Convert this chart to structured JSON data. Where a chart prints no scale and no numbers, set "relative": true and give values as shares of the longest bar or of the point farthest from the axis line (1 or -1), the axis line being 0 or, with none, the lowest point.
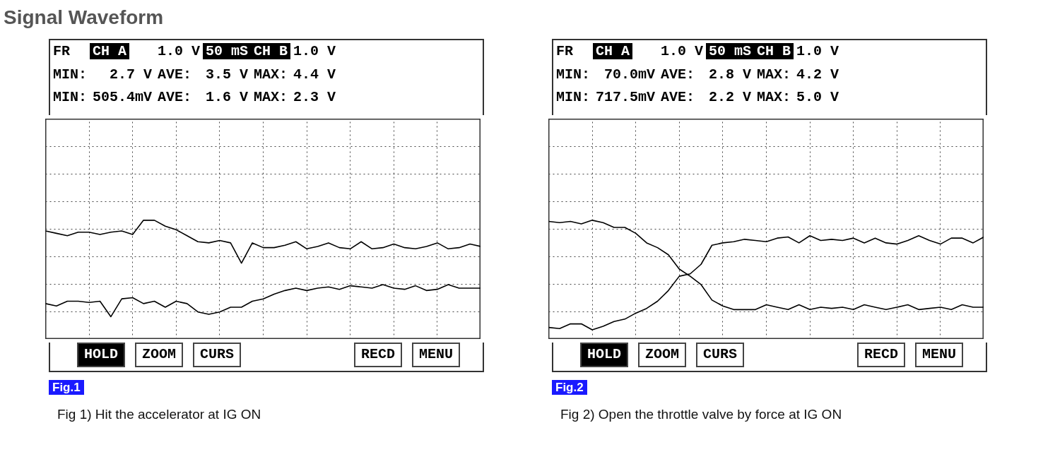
{
  "chart_data": [
    {
      "type": "line",
      "title": "Signal Waveform",
      "relative": true,
      "grid": true,
      "tick_labels": false,
      "line_style": "solid",
      "categories": [
        null,
        null,
        null,
        null,
        null,
        null,
        null,
        null,
        null,
        null,
        null,
        null,
        null,
        null,
        null,
        null,
        null,
        null,
        null,
        null,
        null,
        null,
        null,
        null,
        null,
        null,
        null,
        null,
        null,
        null,
        null,
        null,
        null,
        null,
        null,
        null,
        null,
        null,
        null,
        null,
        null
      ],
      "series": [
        {
          "color": "#000000",
          "values": [
            0.91,
            0.89,
            0.87,
            0.9,
            0.9,
            0.88,
            0.9,
            0.91,
            0.88,
            1,
            1,
            0.95,
            0.92,
            0.87,
            0.82,
            0.81,
            0.83,
            0.81,
            0.64,
            0.81,
            0.77,
            0.77,
            0.79,
            0.82,
            0.76,
            0.78,
            0.81,
            0.77,
            0.76,
            0.82,
            0.76,
            0.77,
            0.8,
            0.77,
            0.76,
            0.78,
            0.81,
            0.76,
            0.77,
            0.8,
            0.78
          ]
        },
        {
          "color": "#000000",
          "values": [
            0.3,
            0.28,
            0.32,
            0.32,
            0.31,
            0.32,
            0.19,
            0.34,
            0.35,
            0.3,
            0.32,
            0.27,
            0.32,
            0.3,
            0.23,
            0.21,
            0.23,
            0.27,
            0.27,
            0.32,
            0.34,
            0.38,
            0.41,
            0.43,
            0.41,
            0.43,
            0.44,
            0.42,
            0.45,
            0.44,
            0.43,
            0.46,
            0.43,
            0.42,
            0.45,
            0.41,
            0.42,
            0.46,
            0.43,
            0.43,
            0.43
          ]
        }
      ],
      "annotations": [
        "FR",
        "CH A",
        "1.0 V",
        "50 mS",
        "CH B",
        "1.0 V",
        "MIN:",
        "2.7 V",
        "AVE:",
        "3.5 V",
        "MAX:",
        "4.4 V",
        "MIN:",
        "505.4mV",
        "AVE:",
        "1.6 V",
        "MAX:",
        "2.3 V",
        "HOLD",
        "ZOOM",
        "CURS",
        "RECD",
        "MENU",
        "Fig.1",
        "Fig 1) Hit the accelerator at IG ON"
      ]
    },
    {
      "type": "line",
      "relative": true,
      "grid": true,
      "tick_labels": false,
      "line_style": "solid",
      "categories": [
        null,
        null,
        null,
        null,
        null,
        null,
        null,
        null,
        null,
        null,
        null,
        null,
        null,
        null,
        null,
        null,
        null,
        null,
        null,
        null,
        null,
        null,
        null,
        null,
        null,
        null,
        null,
        null,
        null,
        null,
        null,
        null,
        null,
        null,
        null,
        null,
        null,
        null,
        null,
        null,
        null
      ],
      "series": [
        {
          "color": "#000000",
          "values": [
            0.99,
            0.98,
            0.99,
            0.97,
            1,
            0.98,
            0.94,
            0.94,
            0.89,
            0.81,
            0.77,
            0.71,
            0.59,
            0.53,
            0.46,
            0.33,
            0.28,
            0.25,
            0.25,
            0.25,
            0.29,
            0.27,
            0.25,
            0.29,
            0.25,
            0.27,
            0.26,
            0.27,
            0.25,
            0.29,
            0.27,
            0.25,
            0.27,
            0.29,
            0.25,
            0.26,
            0.27,
            0.25,
            0.29,
            0.27,
            0.27
          ]
        },
        {
          "color": "#000000",
          "values": [
            0.1,
            0.09,
            0.13,
            0.13,
            0.08,
            0.11,
            0.15,
            0.17,
            0.22,
            0.26,
            0.32,
            0.41,
            0.53,
            0.55,
            0.63,
            0.79,
            0.81,
            0.82,
            0.84,
            0.83,
            0.82,
            0.85,
            0.86,
            0.81,
            0.87,
            0.83,
            0.84,
            0.83,
            0.85,
            0.81,
            0.85,
            0.81,
            0.8,
            0.83,
            0.87,
            0.83,
            0.8,
            0.85,
            0.85,
            0.81,
            0.86
          ]
        }
      ],
      "annotations": [
        "FR",
        "CH A",
        "1.0 V",
        "50 mS",
        "CH B",
        "1.0 V",
        "MIN:",
        "70.0mV",
        "AVE:",
        "2.8 V",
        "MAX:",
        "4.2 V",
        "MIN:",
        "717.5mV",
        "AVE:",
        "2.2 V",
        "MAX:",
        "5.0 V",
        "HOLD",
        "ZOOM",
        "CURS",
        "RECD",
        "MENU",
        "Fig.2",
        "Fig 2) Open the throttle valve by force at IG ON"
      ]
    }
  ]
}
